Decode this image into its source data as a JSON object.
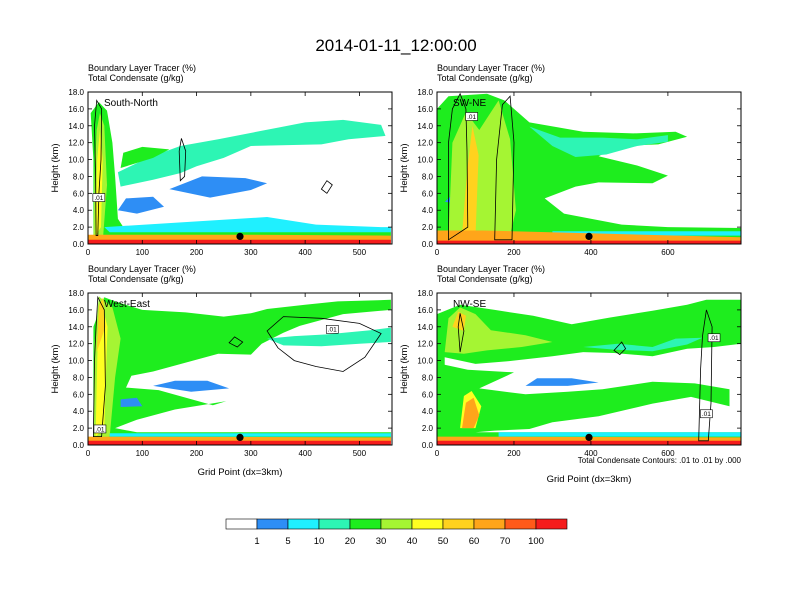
{
  "title": "2014-01-11_12:00:00",
  "colors": {
    "white": "#ffffff",
    "blue": "#2e8ef5",
    "cyan": "#1ff0ff",
    "aqua_green": "#2df5b4",
    "green": "#1eed1e",
    "lime": "#a5f533",
    "yellow": "#ffff21",
    "gold": "#ffd21e",
    "orange": "#ffa51a",
    "red_orange": "#ff5a1a",
    "red": "#f51c1c"
  },
  "colorbar": {
    "colors": [
      "#ffffff",
      "#2e8ef5",
      "#1ff0ff",
      "#2df5b4",
      "#1eed1e",
      "#a5f533",
      "#ffff21",
      "#ffd21e",
      "#ffa51a",
      "#ff5a1a",
      "#f51c1c"
    ],
    "labels": [
      "1",
      "5",
      "10",
      "20",
      "30",
      "40",
      "50",
      "60",
      "70",
      "100"
    ]
  },
  "chart_data": [
    {
      "type": "heatmap",
      "title_line1": "Boundary Layer Tracer   (%)",
      "title_line2": "Total Condensate   (g/kg)",
      "panel_label": "South-North",
      "xlabel": "",
      "ylabel": "Height (km)",
      "xlim": [
        0,
        560
      ],
      "ylim": [
        0,
        18
      ],
      "x_ticks": [
        "0",
        "100",
        "200",
        "300",
        "400",
        "500"
      ],
      "y_ticks": [
        "0.0",
        "2.0",
        "4.0",
        "6.0",
        "8.0",
        "10.0",
        "12.0",
        "14.0",
        "16.0",
        "18.0"
      ],
      "marker_x": 280,
      "contour_labels": [
        ".01"
      ]
    },
    {
      "type": "heatmap",
      "title_line1": "Boundary Layer Tracer   (%)",
      "title_line2": "Total Condensate   (g/kg)",
      "panel_label": "SW-NE",
      "xlabel": "",
      "ylabel": "Height (km)",
      "xlim": [
        0,
        790
      ],
      "ylim": [
        0,
        18
      ],
      "x_ticks": [
        "0",
        "200",
        "400",
        "600"
      ],
      "y_ticks": [
        "0.0",
        "2.0",
        "4.0",
        "6.0",
        "8.0",
        "10.0",
        "12.0",
        "14.0",
        "16.0",
        "18.0"
      ],
      "marker_x": 395,
      "contour_labels": [
        ".01"
      ]
    },
    {
      "type": "heatmap",
      "title_line1": "Boundary Layer Tracer   (%)",
      "title_line2": "Total Condensate   (g/kg)",
      "panel_label": "West-East",
      "xlabel": "Grid Point (dx=3km)",
      "ylabel": "Height (km)",
      "xlim": [
        0,
        560
      ],
      "ylim": [
        0,
        18
      ],
      "x_ticks": [
        "0",
        "100",
        "200",
        "300",
        "400",
        "500"
      ],
      "y_ticks": [
        "0.0",
        "2.0",
        "4.0",
        "6.0",
        "8.0",
        "10.0",
        "12.0",
        "14.0",
        "16.0",
        "18.0"
      ],
      "marker_x": 280,
      "contour_labels": [
        ".01",
        ".01"
      ]
    },
    {
      "type": "heatmap",
      "title_line1": "Boundary Layer Tracer   (%)",
      "title_line2": "Total Condensate   (g/kg)",
      "panel_label": "NW-SE",
      "xlabel": "Grid Point (dx=3km)",
      "ylabel": "Height (km)",
      "xlim": [
        0,
        790
      ],
      "ylim": [
        0,
        18
      ],
      "x_ticks": [
        "0",
        "200",
        "400",
        "600"
      ],
      "y_ticks": [
        "0.0",
        "2.0",
        "4.0",
        "6.0",
        "8.0",
        "10.0",
        "12.0",
        "14.0",
        "16.0",
        "18.0"
      ],
      "marker_x": 395,
      "contour_labels": [
        ".01",
        ".01"
      ],
      "note": "Total Condensate Contours: .01 to .01 by .000"
    }
  ]
}
